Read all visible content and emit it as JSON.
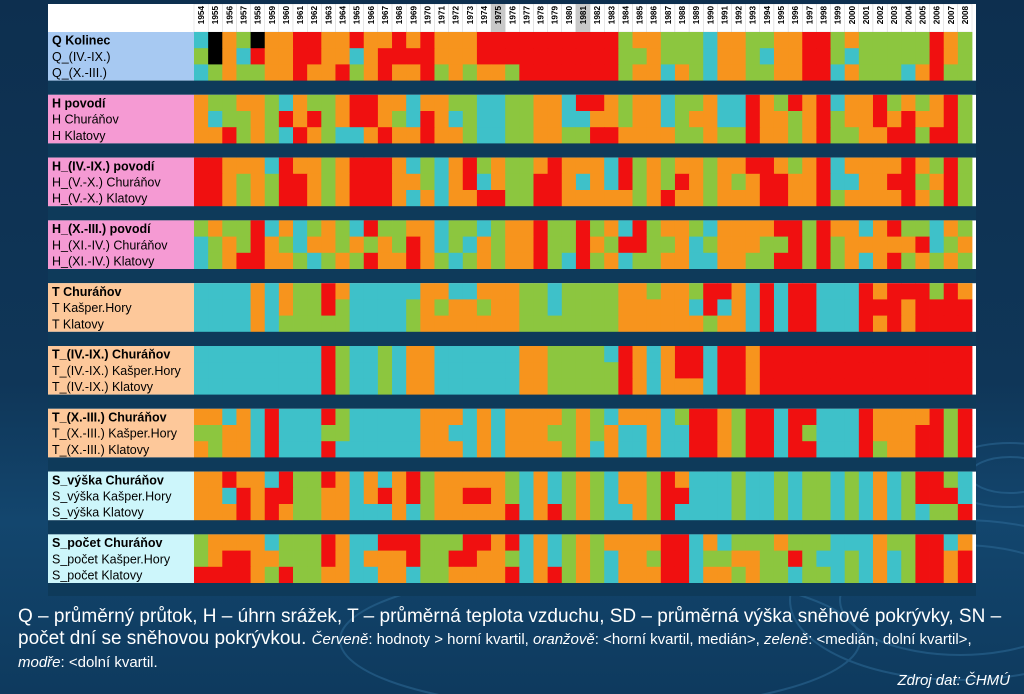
{
  "caption": {
    "line1": "Q – průměrný  průtok,  H – úhrn srážek, T – průměrná teplota vzduchu,  SD – průměrná výška sněhové pokrývky, SN – počet dní se sněhovou pokrývkou.",
    "red_label": "Červeně",
    "red_text": ": hodnoty > horní kvartil, ",
    "orange_label": "oranžově",
    "orange_text": ":  <horní kvartil, medián>, ",
    "green_label": "zeleně",
    "green_text": ": <medián, dolní kvartil>, ",
    "blue_label": "modře",
    "blue_text": ": <dolní kvartil."
  },
  "source": "Zdroj dat: ČHMÚ",
  "colors": {
    "above_upper_quartile": "#f01010",
    "upper_quartile_to_median": "#f7941d",
    "median_to_lower_quartile": "#8cc63f",
    "below_lower_quartile": "#3ec1c9",
    "separator": "#0e3a5a"
  },
  "chart_data": {
    "type": "heatmap",
    "x": [
      1954,
      1955,
      1956,
      1957,
      1958,
      1959,
      1960,
      1961,
      1962,
      1963,
      1964,
      1965,
      1966,
      1967,
      1968,
      1969,
      1970,
      1971,
      1972,
      1973,
      1974,
      1975,
      1976,
      1977,
      1978,
      1979,
      1980,
      1981,
      1982,
      1983,
      1984,
      1985,
      1986,
      1987,
      1988,
      1989,
      1990,
      1991,
      1992,
      1993,
      1994,
      1995,
      1996,
      1997,
      1998,
      1999,
      2000,
      2001,
      2002,
      2003,
      2004,
      2005,
      2006,
      2007,
      2008
    ],
    "highlighted_years": [
      1975,
      1981
    ],
    "legend": [
      "> horní kvartil",
      "<horní kvartil, medián>",
      "<medián, dolní kvartil>",
      "<dolní kvartil"
    ],
    "groups": [
      {
        "bg": "#a7c9f2",
        "rows": [
          {
            "label": "Q Kolinec",
            "bold": true,
            "values": "1032033443343343433344444444442332221332233442322222432"
          },
          {
            "label": "Q_(IV.-IX.)",
            "bold": false,
            "values": "2031433443313444433344444444442232221332133442122222432"
          },
          {
            "label": "Q_(X.-III.)",
            "bold": false,
            "values": "1232233433423433423233244444442331321332233441322213422"
          }
        ]
      },
      {
        "bg": "#f59ad3",
        "rows": [
          {
            "label": "H povodí",
            "bold": true,
            "values": "3223321322344331332211223314432331223114324341334232342"
          },
          {
            "label": "H Churáňov",
            "bold": false,
            "values": "3122324342344321431211223311332331233114332342334343342"
          },
          {
            "label": "H Klatovy",
            "bold": false,
            "values": "3342321432113433433211223322443333223224332342233442442"
          }
        ]
      },
      {
        "bg": "#f59ad3",
        "rows": [
          {
            "label": "H_(IV.-IX.) povodí",
            "bold": true,
            "values": "4433314332344431213423223433314232332334432341333343242"
          },
          {
            "label": "H_(V.-X.) Churáňov",
            "bold": false,
            "values": "4432324432344433213413224431314232432323443341133442342"
          },
          {
            "label": "H_(V.-X.) Klatovy",
            "bold": false,
            "values": "4432324432344431313344224433333234332333443342333343242"
          }
        ]
      },
      {
        "bg": "#f59ad3",
        "rows": [
          {
            "label": "H_(X.-III.) povodí",
            "bold": true,
            "values": "2322413123214223312212334224231423321333344243313422132"
          },
          {
            "label": "H_(XI.-IV.) Churáňov",
            "bold": false,
            "values": "1232432133232324312132334224324422312333224242333334123"
          },
          {
            "label": "H_(XI.-IV.) Klatovy",
            "bold": false,
            "values": "1234433212324334321232334214231223311332244242313423232"
          }
        ]
      },
      {
        "bg": "#fdc89a",
        "rows": [
          {
            "label": "T Churáňov",
            "bold": true,
            "values": "1111313224311111331133322122223323324431414411143444243"
          },
          {
            "label": "T Kašper.Hory",
            "bold": false,
            "values": "1111313224211112323323322122223333314131414411144434444"
          },
          {
            "label": "T Klatovy",
            "bold": false,
            "values": "1111312222211112333333322222223333332331414411143434444"
          }
        ]
      },
      {
        "bg": "#fdc89a",
        "rows": [
          {
            "label": "T_(IV.-IX.) Churáňov",
            "bold": true,
            "values": "1111111114211213311111133222214313441443444444444444444"
          },
          {
            "label": "T_(IV.-IX.) Kašper.Hory",
            "bold": false,
            "values": "1111111114211213311111133222224313441443444444444444444"
          },
          {
            "label": "T_(IV.-IX.) Klatovy",
            "bold": false,
            "values": "1111111114211213311111133222224313331443444444444444444"
          }
        ]
      },
      {
        "bg": "#fdc89a",
        "rows": [
          {
            "label": "T_(X.-III.) Churáňov",
            "bold": true,
            "values": "3313141114211111333131333323213331244324414411143333424"
          },
          {
            "label": "T_(X.-III.) Kašper.Hory",
            "bold": false,
            "values": "2233141112211111331131333223231131144324414211143334424"
          },
          {
            "label": "T_(X.-III.) Klatovy",
            "bold": false,
            "values": "3233141114111111333131333323131131144324414411142334424"
          }
        ]
      },
      {
        "bg": "#cdf6fb",
        "rows": [
          {
            "label": "S_výška Churáňov",
            "bold": true,
            "values": "3343314224313134233333213123213324311121121221213124421"
          },
          {
            "label": "S_výška Kašper.Hory",
            "bold": false,
            "values": "3314344223313434233443213123213324411121121221213124441"
          },
          {
            "label": "S_výška Klatovy",
            "bold": false,
            "values": "3334343223311131233333413423211324111121121221213121224"
          }
        ]
      },
      {
        "bg": "#cdf6fb",
        "rows": [
          {
            "label": "S_počet Churáňov",
            "bold": true,
            "values": "2333312224311444222443413123233334413122232221113224413"
          },
          {
            "label": "S_počet Kašper.Hory",
            "bold": false,
            "values": "2344332224313334224433213123213324412233224211213124434"
          },
          {
            "label": "S_počet Klatovy",
            "bold": false,
            "values": "4444324223311331223333413423213334413323221221213124434"
          }
        ]
      }
    ]
  }
}
